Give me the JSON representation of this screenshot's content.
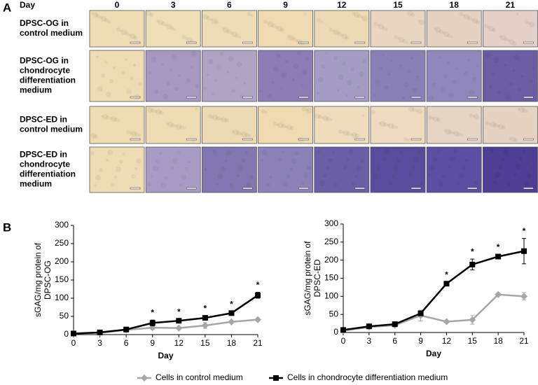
{
  "panel_a": {
    "label": "A",
    "day_label": "Day",
    "days": [
      "0",
      "3",
      "6",
      "9",
      "12",
      "15",
      "18",
      "21"
    ],
    "rows": [
      [
        "DPSC-OG in",
        "control medium"
      ],
      [
        "DPSC-OG in",
        "chondrocyte",
        "differentiation",
        "medium"
      ],
      [
        "DPSC-ED in",
        "control medium"
      ],
      [
        "DPSC-ED in",
        "chondrocyte",
        "differentiation",
        "medium"
      ]
    ]
  },
  "panel_b_label": "B",
  "chart_data": [
    {
      "type": "line",
      "xlabel": "Day",
      "ylabel": [
        "sGAG/mg protein of",
        "DPSC-OG"
      ],
      "x": [
        0,
        3,
        6,
        9,
        12,
        15,
        18,
        21
      ],
      "xlim": [
        0,
        21
      ],
      "xticks": [
        0,
        3,
        6,
        9,
        12,
        15,
        18,
        21
      ],
      "ylim": [
        0,
        300
      ],
      "yticks": [
        0,
        50,
        100,
        150,
        200,
        250,
        300
      ],
      "legend": "bottom",
      "series": [
        {
          "name": "Cells in control medium",
          "color": "#a6a6a6",
          "marker": "diamond",
          "values": [
            3,
            5,
            13,
            19,
            18,
            25,
            35,
            41
          ],
          "errors": [
            1,
            1,
            2,
            5,
            3,
            8,
            3,
            3
          ]
        },
        {
          "name": "Cells in chondrocyte differentiation medium",
          "color": "#000000",
          "marker": "square",
          "values": [
            3,
            6,
            14,
            32,
            38,
            46,
            59,
            108
          ],
          "errors": [
            1,
            1,
            2,
            8,
            4,
            5,
            4,
            8
          ]
        }
      ],
      "annotations": [
        {
          "x": 9,
          "text": "*"
        },
        {
          "x": 12,
          "text": "*"
        },
        {
          "x": 15,
          "text": "*"
        },
        {
          "x": 18,
          "text": "*"
        },
        {
          "x": 21,
          "text": "*"
        }
      ]
    },
    {
      "type": "line",
      "xlabel": "Day",
      "ylabel": [
        "sGAG/mg protein of",
        "DPSC-ED"
      ],
      "x": [
        0,
        3,
        6,
        9,
        12,
        15,
        18,
        21
      ],
      "xlim": [
        0,
        21
      ],
      "xticks": [
        0,
        3,
        6,
        9,
        12,
        15,
        18,
        21
      ],
      "ylim": [
        0,
        300
      ],
      "yticks": [
        0,
        50,
        100,
        150,
        200,
        250,
        300
      ],
      "series": [
        {
          "name": "Cells in control medium",
          "color": "#a6a6a6",
          "marker": "diamond",
          "values": [
            5,
            15,
            20,
            47,
            30,
            35,
            105,
            100
          ],
          "errors": [
            2,
            2,
            3,
            15,
            3,
            12,
            3,
            10
          ]
        },
        {
          "name": "Cells in chondrocyte differentiation medium",
          "color": "#000000",
          "marker": "square",
          "values": [
            7,
            17,
            23,
            53,
            135,
            188,
            210,
            225
          ],
          "errors": [
            2,
            3,
            3,
            5,
            4,
            15,
            5,
            35
          ]
        }
      ],
      "annotations": [
        {
          "x": 12,
          "text": "*"
        },
        {
          "x": 15,
          "text": "*"
        },
        {
          "x": 18,
          "text": "*"
        },
        {
          "x": 21,
          "text": "*"
        }
      ]
    }
  ]
}
